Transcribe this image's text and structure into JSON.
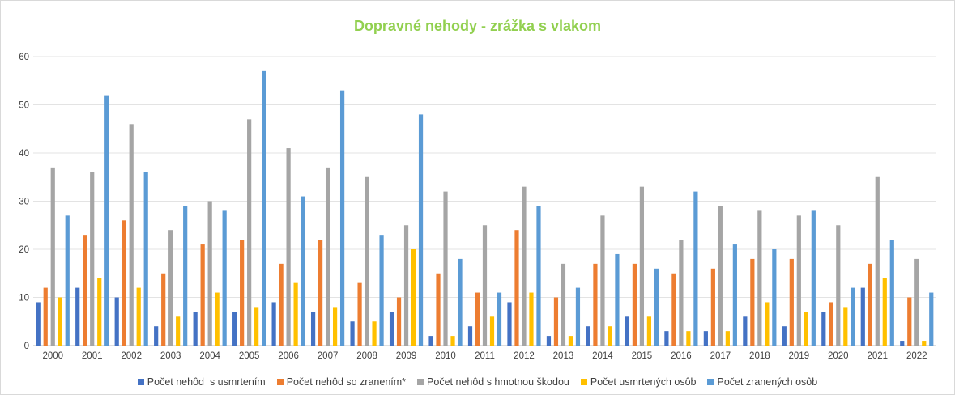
{
  "chart_data": {
    "type": "bar",
    "title": "Dopravné nehody - zrážka s vlakom",
    "xlabel": "",
    "ylabel": "",
    "ylim": [
      0,
      60
    ],
    "yticks": [
      0,
      10,
      20,
      30,
      40,
      50,
      60
    ],
    "grid": true,
    "legend_position": "bottom",
    "categories": [
      "2000",
      "2001",
      "2002",
      "2003",
      "2004",
      "2005",
      "2006",
      "2007",
      "2008",
      "2009",
      "2010",
      "2011",
      "2012",
      "2013",
      "2014",
      "2015",
      "2016",
      "2017",
      "2018",
      "2019",
      "2020",
      "2021",
      "2022"
    ],
    "series": [
      {
        "name": "Počet nehôd  s usmrtením",
        "color": "#4472c4",
        "values": [
          9,
          12,
          10,
          4,
          7,
          7,
          9,
          7,
          5,
          7,
          2,
          4,
          9,
          2,
          4,
          6,
          3,
          3,
          6,
          4,
          7,
          12,
          1
        ]
      },
      {
        "name": "Počet nehôd so zranením*",
        "color": "#ed7d31",
        "values": [
          12,
          23,
          26,
          15,
          21,
          22,
          17,
          22,
          13,
          10,
          15,
          11,
          24,
          10,
          17,
          17,
          15,
          16,
          18,
          18,
          9,
          17,
          10
        ]
      },
      {
        "name": "Počet nehôd s hmotnou škodou",
        "color": "#a5a5a5",
        "values": [
          37,
          36,
          46,
          24,
          30,
          47,
          41,
          37,
          35,
          25,
          32,
          25,
          33,
          17,
          27,
          33,
          22,
          29,
          28,
          27,
          25,
          35,
          18
        ]
      },
      {
        "name": "Počet usmrtených osôb",
        "color": "#ffc000",
        "values": [
          10,
          14,
          12,
          6,
          11,
          8,
          13,
          8,
          5,
          20,
          2,
          6,
          11,
          2,
          4,
          6,
          3,
          3,
          9,
          7,
          8,
          14,
          1
        ]
      },
      {
        "name": "Počet zranených osôb",
        "color": "#5b9bd5",
        "values": [
          27,
          52,
          36,
          29,
          28,
          57,
          31,
          53,
          23,
          48,
          18,
          11,
          29,
          12,
          19,
          16,
          32,
          21,
          20,
          28,
          12,
          22,
          11
        ]
      }
    ]
  }
}
